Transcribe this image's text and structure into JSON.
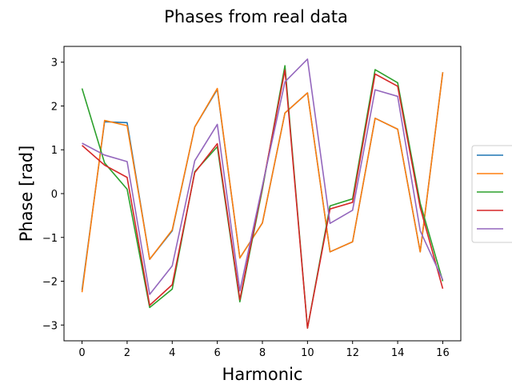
{
  "chart_data": {
    "type": "line",
    "title": "Phases from real data",
    "xlabel": "Harmonic",
    "ylabel": "Phase [rad]",
    "xlim": [
      -0.8,
      16.8
    ],
    "ylim": [
      -3.36,
      3.36
    ],
    "xticks": [
      0,
      2,
      4,
      6,
      8,
      10,
      12,
      14,
      16
    ],
    "yticks": [
      -3,
      -2,
      -1,
      0,
      1,
      2,
      3
    ],
    "grid": false,
    "legend_position": "right, outside plot",
    "x": [
      0,
      1,
      2,
      3,
      4,
      5,
      6,
      7,
      8,
      9,
      10,
      11,
      12,
      13,
      14,
      15,
      16
    ],
    "series": [
      {
        "color": "#1f77b4",
        "values": [
          -2.2,
          1.64,
          1.62,
          -1.5,
          -0.85,
          1.52,
          2.38,
          -1.47,
          -0.67,
          1.84,
          2.3,
          -1.33,
          -1.1,
          1.72,
          1.47,
          -1.33,
          2.77
        ]
      },
      {
        "color": "#ff7f0e",
        "values": [
          -2.25,
          1.67,
          1.55,
          -1.5,
          -0.83,
          1.52,
          2.4,
          -1.47,
          -0.67,
          1.84,
          2.3,
          -1.33,
          -1.1,
          1.72,
          1.47,
          -1.33,
          2.77
        ]
      },
      {
        "color": "#2ca02c",
        "values": [
          2.4,
          0.7,
          0.1,
          -2.6,
          -2.18,
          0.5,
          1.07,
          -2.47,
          0.1,
          2.92,
          -3.07,
          -0.28,
          -0.12,
          2.83,
          2.53,
          -0.22,
          -2.0
        ]
      },
      {
        "color": "#d62728",
        "values": [
          1.1,
          0.65,
          0.37,
          -2.55,
          -2.08,
          0.48,
          1.14,
          -2.42,
          0.15,
          2.82,
          -3.07,
          -0.35,
          -0.2,
          2.73,
          2.45,
          -0.32,
          -2.17
        ]
      },
      {
        "color": "#9467bd",
        "values": [
          1.15,
          0.88,
          0.73,
          -2.3,
          -1.65,
          0.75,
          1.58,
          -2.22,
          0.18,
          2.55,
          3.07,
          -0.68,
          -0.38,
          2.37,
          2.22,
          -0.85,
          -1.97
        ]
      }
    ]
  }
}
